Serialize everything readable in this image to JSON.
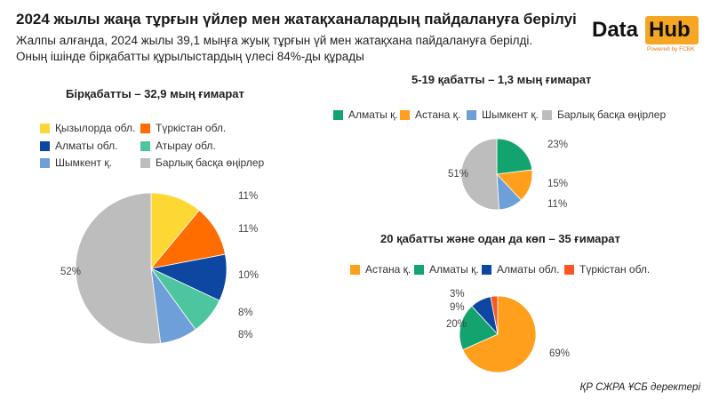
{
  "header": {
    "title": "2024 жылы жаңа тұрғын үйлер мен жатақханалардың пайдалануға берілуі",
    "subtitle": "Жалпы алғанда, 2024 жылы 39,1 мыңға жуық тұрғын үй мен жатақхана пайдалануға берілді. Оның ішінде бірқабатты құрылыстардың үлесі 84%-ды құрады"
  },
  "logo": {
    "word1": "Data",
    "word2": "Hub",
    "tagline": "Powered by FCBK",
    "color": "#f5a623"
  },
  "source": "ҚР СЖРА ҰСБ деректері",
  "chart_data": [
    {
      "type": "pie",
      "title": "Бірқабатты – 32,9 мың ғимарат",
      "legend": [
        "Қызылорда обл.",
        "Түркістан обл.",
        "Алматы обл.",
        "Атырау обл.",
        "Шымкент қ.",
        "Барлық басқа өңірлер"
      ],
      "categories": [
        "Қызылорда обл.",
        "Түркістан обл.",
        "Алматы обл.",
        "Атырау обл.",
        "Шымкент қ.",
        "Барлық басқа өңірлер"
      ],
      "values": [
        11,
        11,
        10,
        8,
        8,
        52
      ],
      "labels": [
        "11%",
        "11%",
        "10%",
        "8%",
        "8%",
        "52%"
      ],
      "colors": [
        "#fdd835",
        "#ff6d00",
        "#0d47a1",
        "#4dc6a0",
        "#6f9fd8",
        "#bdbdbd"
      ]
    },
    {
      "type": "pie",
      "title": "5-19 қабатты – 1,3 мың ғимарат",
      "legend": [
        "Алматы қ.",
        "Астана қ.",
        "Шымкент қ.",
        "Барлық басқа өңірлер"
      ],
      "categories": [
        "Алматы қ.",
        "Астана қ.",
        "Шымкент қ.",
        "Барлық басқа өңірлер"
      ],
      "values": [
        23,
        15,
        11,
        51
      ],
      "labels": [
        "23%",
        "15%",
        "11%",
        "51%"
      ],
      "colors": [
        "#12a36e",
        "#ff9f1c",
        "#6f9fd8",
        "#bdbdbd"
      ]
    },
    {
      "type": "pie",
      "title": "20 қабатты және одан да көп – 35  ғимарат",
      "legend": [
        "Астана қ.",
        "Алматы қ.",
        "Алматы обл.",
        "Түркістан обл."
      ],
      "categories": [
        "Астана қ.",
        "Алматы қ.",
        "Алматы обл.",
        "Түркістан обл."
      ],
      "values": [
        69,
        20,
        9,
        3
      ],
      "labels": [
        "69%",
        "20%",
        "9%",
        "3%"
      ],
      "colors": [
        "#ff9f1c",
        "#12a36e",
        "#0d47a1",
        "#ff5722"
      ]
    }
  ]
}
